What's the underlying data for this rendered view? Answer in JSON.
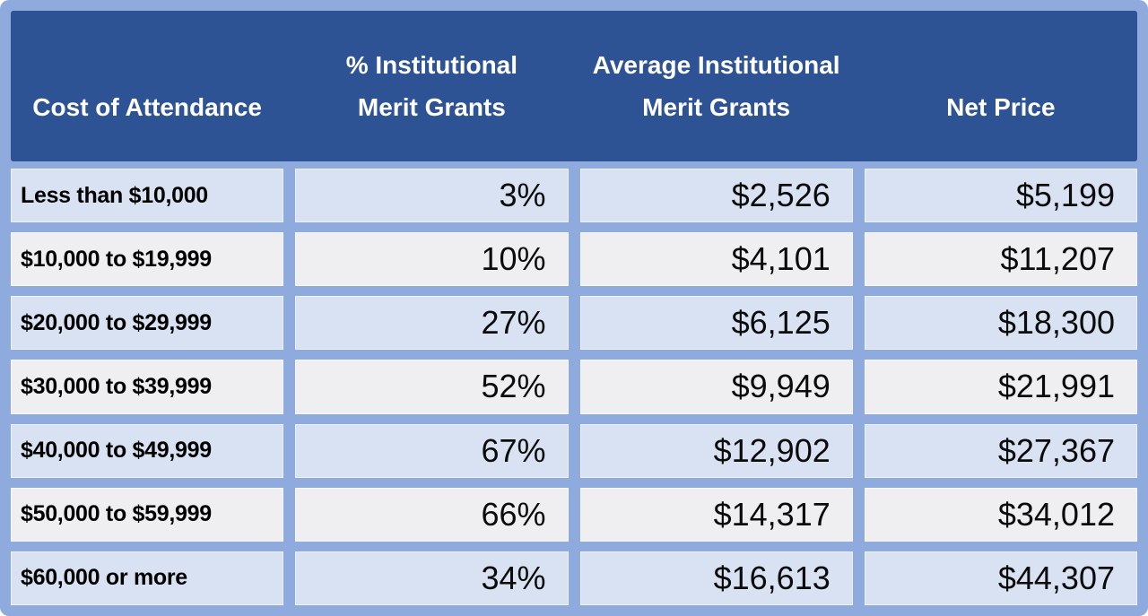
{
  "colors": {
    "frame_and_grid": "#8FAADC",
    "header_bg": "#2E5395",
    "row_light_blue": "#D9E2F3",
    "row_off_white": "#EFEFF2",
    "header_text": "#FFFFFF",
    "body_text": "#000000"
  },
  "table": {
    "headers": [
      {
        "line1": "",
        "line2": "Cost of Attendance"
      },
      {
        "line1": "% Institutional",
        "line2": "Merit Grants"
      },
      {
        "line1": "Average Institutional",
        "line2": "Merit Grants"
      },
      {
        "line1": "",
        "line2": "Net Price"
      }
    ],
    "rows": [
      {
        "cost": "Less than $10,000",
        "pct": "3%",
        "avg": "$2,526",
        "net": "$5,199"
      },
      {
        "cost": "$10,000 to $19,999",
        "pct": "10%",
        "avg": "$4,101",
        "net": "$11,207"
      },
      {
        "cost": "$20,000 to $29,999",
        "pct": "27%",
        "avg": "$6,125",
        "net": "$18,300"
      },
      {
        "cost": "$30,000 to $39,999",
        "pct": "52%",
        "avg": "$9,949",
        "net": "$21,991"
      },
      {
        "cost": "$40,000 to $49,999",
        "pct": "67%",
        "avg": "$12,902",
        "net": "$27,367"
      },
      {
        "cost": "$50,000 to $59,999",
        "pct": "66%",
        "avg": "$14,317",
        "net": "$34,012"
      },
      {
        "cost": "$60,000 or more",
        "pct": "34%",
        "avg": "$16,613",
        "net": "$44,307"
      }
    ]
  },
  "chart_data": {
    "type": "table",
    "columns": [
      "Cost of Attendance",
      "% Institutional Merit Grants",
      "Average Institutional Merit Grants",
      "Net Price"
    ],
    "rows": [
      [
        "Less than $10,000",
        "3%",
        "$2,526",
        "$5,199"
      ],
      [
        "$10,000 to $19,999",
        "10%",
        "$4,101",
        "$11,207"
      ],
      [
        "$20,000 to $29,999",
        "27%",
        "$6,125",
        "$18,300"
      ],
      [
        "$30,000 to $39,999",
        "52%",
        "$9,949",
        "$21,991"
      ],
      [
        "$40,000 to $49,999",
        "67%",
        "$12,902",
        "$27,367"
      ],
      [
        "$50,000 to $59,999",
        "66%",
        "$14,317",
        "$34,012"
      ],
      [
        "$60,000 or more",
        "34%",
        "$16,613",
        "$44,307"
      ]
    ],
    "pct_values": [
      3,
      10,
      27,
      52,
      67,
      66,
      34
    ],
    "avg_grant_values": [
      2526,
      4101,
      6125,
      9949,
      12902,
      14317,
      16613
    ],
    "net_price_values": [
      5199,
      11207,
      18300,
      21991,
      27367,
      34012,
      44307
    ]
  }
}
